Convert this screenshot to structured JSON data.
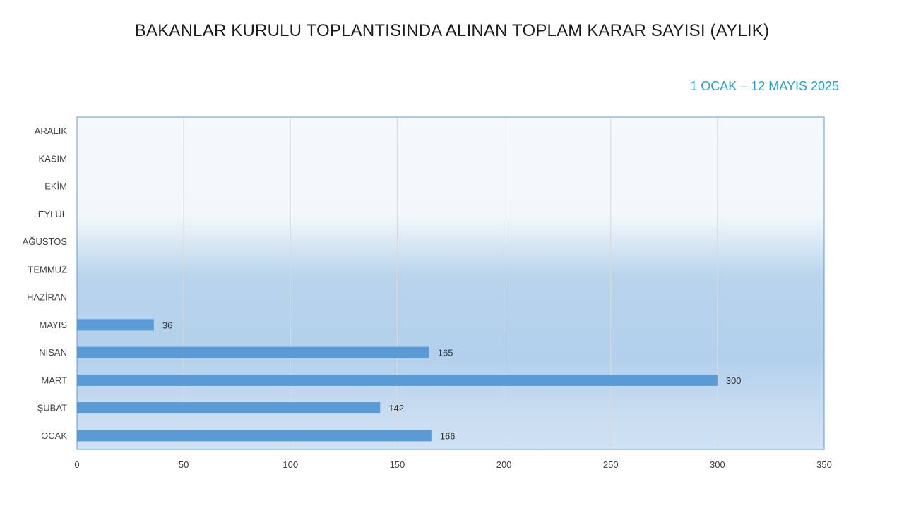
{
  "title": "BAKANLAR KURULU TOPLANTISINDA ALINAN TOPLAM KARAR SAYISI (AYLIK)",
  "subtitle": "1 OCAK –  12 MAYIS 2025",
  "colors": {
    "bar": "#5b9bd5",
    "plot_border": "#5b9bd5",
    "grid": "#d9d9d9",
    "subtitle": "#1fa3d6"
  },
  "chart_data": {
    "type": "bar",
    "orientation": "horizontal",
    "categories": [
      "OCAK",
      "ŞUBAT",
      "MART",
      "NİSAN",
      "MAYIS",
      "HAZİRAN",
      "TEMMUZ",
      "AĞUSTOS",
      "EYLÜL",
      "EKİM",
      "KASIM",
      "ARALIK"
    ],
    "values": [
      166,
      142,
      300,
      165,
      36,
      null,
      null,
      null,
      null,
      null,
      null,
      null
    ],
    "xlim": [
      0,
      350
    ],
    "xticks": [
      0,
      50,
      100,
      150,
      200,
      250,
      300,
      350
    ],
    "grid": true,
    "data_labels": true
  }
}
